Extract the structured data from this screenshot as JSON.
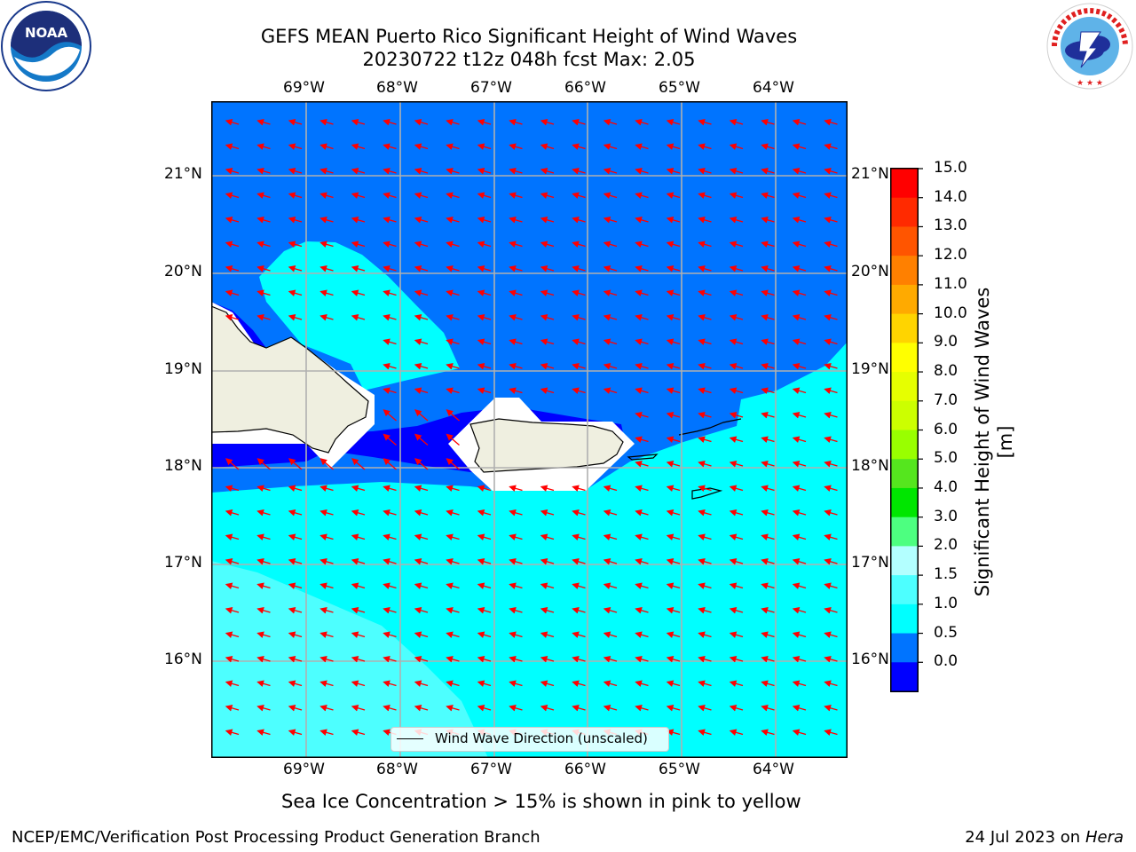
{
  "title": {
    "line1": "GEFS MEAN Puerto Rico Significant Height of Wind Waves",
    "line2": "20230722 t12z 048h fcst   Max: 2.05"
  },
  "logos": {
    "left": {
      "text": "NOAA",
      "ring_text": "NATIONAL OCEANIC AND ATMOSPHERIC ADMINISTRATION · U.S. DEPARTMENT OF COMMERCE",
      "icon": "noaa-logo"
    },
    "right": {
      "ring_text": "NATIONAL WEATHER SERVICE",
      "icon": "nws-logo"
    }
  },
  "map": {
    "lon_labels": [
      "69°W",
      "68°W",
      "67°W",
      "66°W",
      "65°W",
      "64°W"
    ],
    "lat_labels": [
      "21°N",
      "20°N",
      "19°N",
      "18°N",
      "17°N",
      "16°N"
    ],
    "layer": "Significant Height of Wind Waves [m]",
    "vectors": "Wind Wave Direction (unscaled)",
    "colors": {
      "band_0_0_5": "#0000ff",
      "band_0_5_1_0": "#0074ff",
      "band_1_0_1_5": "#00ffff",
      "band_1_5_2_0": "#4dffff",
      "land": "#efefe0",
      "arrow": "#ff0000",
      "grid": "#b0b0b0"
    }
  },
  "legend": {
    "label": "Wind Wave Direction (unscaled)",
    "icon": "line-icon"
  },
  "colorbar": {
    "label": "Significant Height of Wind Waves [m]",
    "ticks": [
      "15.0",
      "14.0",
      "13.0",
      "12.0",
      "11.0",
      "10.0",
      "9.0",
      "8.0",
      "7.0",
      "6.0",
      "5.0",
      "4.0",
      "3.0",
      "2.0",
      "1.5",
      "1.0",
      "0.5",
      "0.0"
    ],
    "colors": [
      "#ff0000",
      "#ff2a00",
      "#ff5500",
      "#ff8000",
      "#ffaa00",
      "#ffd400",
      "#ffff00",
      "#e6ff00",
      "#ccff00",
      "#99ff00",
      "#55e61e",
      "#00e600",
      "#4dff80",
      "#b3ffff",
      "#4dffff",
      "#00ffff",
      "#0074ff",
      "#0000ff"
    ]
  },
  "notes": {
    "sea_ice": "Sea Ice Concentration > 15% is shown in pink to yellow"
  },
  "footer": {
    "left": "NCEP/EMC/Verification Post Processing Product Generation Branch",
    "date": "24 Jul 2023 on",
    "machine": "Hera"
  }
}
